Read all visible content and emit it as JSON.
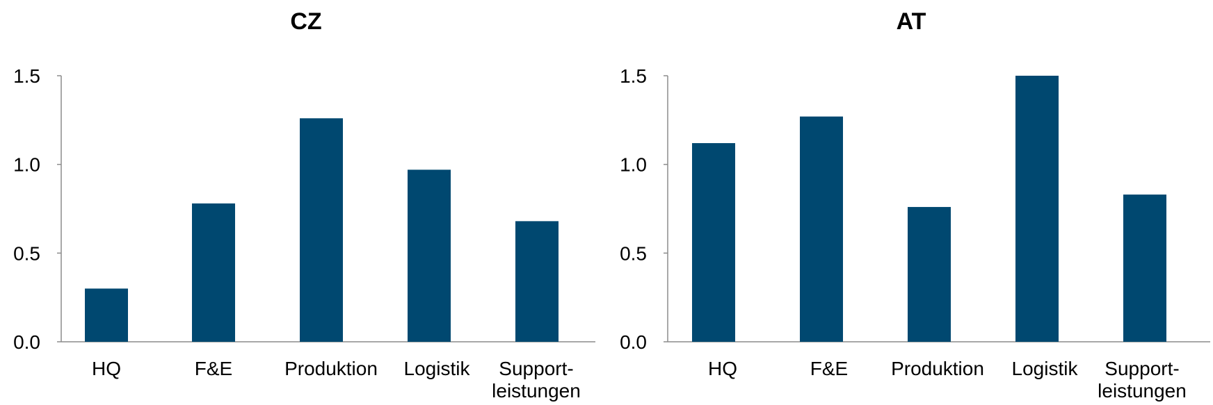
{
  "colors": {
    "bar": "#004870",
    "axis": "#8c8c8c",
    "text": "#000000"
  },
  "chart_data": [
    {
      "type": "bar",
      "title": "CZ",
      "categories": [
        "HQ",
        "F&E",
        "Produktion",
        "Logistik",
        [
          "Support-",
          "leistungen"
        ]
      ],
      "values": [
        0.3,
        0.78,
        1.26,
        0.97,
        0.68
      ],
      "yticks": [
        "0.0",
        "0.5",
        "1.0",
        "1.5"
      ],
      "ylim": [
        0,
        1.5
      ],
      "xlabel": "",
      "ylabel": "",
      "grid": false,
      "legend": "none"
    },
    {
      "type": "bar",
      "title": "AT",
      "categories": [
        "HQ",
        "F&E",
        "Produktion",
        "Logistik",
        [
          "Support-",
          "leistungen"
        ]
      ],
      "values": [
        1.12,
        1.27,
        0.76,
        1.5,
        0.83
      ],
      "yticks": [
        "0.0",
        "0.5",
        "1.0",
        "1.5"
      ],
      "ylim": [
        0,
        1.5
      ],
      "xlabel": "",
      "ylabel": "",
      "grid": false,
      "legend": "none"
    }
  ]
}
